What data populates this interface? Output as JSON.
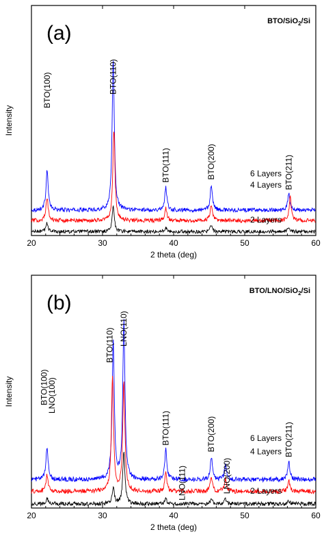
{
  "chart_data": [
    {
      "type": "line",
      "panel_label": "(a)",
      "sample": "BTO/SiO",
      "sample_sub": "2",
      "sample_tail": "/Si",
      "xlabel": "2 theta (deg)",
      "ylabel": "Intensity",
      "xlim": [
        20,
        60
      ],
      "xticks": [
        "20",
        "30",
        "40",
        "50",
        "60"
      ],
      "grid": false,
      "peak_labels": [
        {
          "text": "BTO(100)",
          "x": 22.2
        },
        {
          "text": "BTO(110)",
          "x": 31.5
        },
        {
          "text": "BTO(111)",
          "x": 38.9
        },
        {
          "text": "BTO(200)",
          "x": 45.3
        },
        {
          "text": "BTO(211)",
          "x": 56.2
        }
      ],
      "series": [
        {
          "name": "6 Layers",
          "color": "#0000ff",
          "baseline": 0.78,
          "noise": 0.07,
          "peaks": [
            [
              22.2,
              1.4
            ],
            [
              31.5,
              5.2
            ],
            [
              38.9,
              0.8
            ],
            [
              45.3,
              0.9
            ],
            [
              56.2,
              0.55
            ]
          ]
        },
        {
          "name": "4 Layers",
          "color": "#ff0000",
          "baseline": 0.42,
          "noise": 0.07,
          "peaks": [
            [
              22.2,
              0.8
            ],
            [
              31.6,
              3.1
            ],
            [
              38.9,
              0.45
            ],
            [
              45.3,
              0.55
            ],
            [
              56.4,
              0.8
            ]
          ]
        },
        {
          "name": "2 Layers",
          "color": "#000000",
          "baseline": 0.04,
          "noise": 0.06,
          "peaks": [
            [
              22.2,
              0.3
            ],
            [
              31.5,
              0.9
            ],
            [
              38.9,
              0.15
            ],
            [
              45.3,
              0.2
            ],
            [
              56.2,
              0.15
            ]
          ]
        }
      ]
    },
    {
      "type": "line",
      "panel_label": "(b)",
      "sample": "BTO/LNO/SiO",
      "sample_sub": "2",
      "sample_tail": "/Si",
      "xlabel": "2 theta (deg)",
      "ylabel": "Intensity",
      "xlim": [
        20,
        60
      ],
      "xticks": [
        "20",
        "30",
        "40",
        "50",
        "60"
      ],
      "grid": false,
      "peak_labels": [
        {
          "text": "BTO(100)",
          "x": 21.8
        },
        {
          "text": "LNO(100)",
          "x": 22.9
        },
        {
          "text": "BTO(110)",
          "x": 31.0
        },
        {
          "text": "LNO(110)",
          "x": 33.0
        },
        {
          "text": "BTO(111)",
          "x": 38.9
        },
        {
          "text": "LNO(111)",
          "x": 41.2
        },
        {
          "text": "BTO(200)",
          "x": 45.3
        },
        {
          "text": "LNO(200)",
          "x": 47.5
        },
        {
          "text": "BTO(211)",
          "x": 56.2
        }
      ],
      "series": [
        {
          "name": "6 Layers",
          "color": "#0000ff",
          "baseline": 0.78,
          "noise": 0.07,
          "peaks": [
            [
              22.2,
              1.0
            ],
            [
              31.5,
              4.2
            ],
            [
              33.0,
              4.8
            ],
            [
              38.9,
              0.9
            ],
            [
              45.3,
              0.7
            ],
            [
              47.3,
              0.45
            ],
            [
              56.2,
              0.55
            ]
          ]
        },
        {
          "name": "4 Layers",
          "color": "#ff0000",
          "baseline": 0.42,
          "noise": 0.07,
          "peaks": [
            [
              22.2,
              0.5
            ],
            [
              31.4,
              3.5
            ],
            [
              33.0,
              3.3
            ],
            [
              38.9,
              0.55
            ],
            [
              45.3,
              0.45
            ],
            [
              47.3,
              0.4
            ],
            [
              56.2,
              0.3
            ]
          ]
        },
        {
          "name": "2 Layers",
          "color": "#000000",
          "baseline": 0.04,
          "noise": 0.06,
          "peaks": [
            [
              22.2,
              0.2
            ],
            [
              31.5,
              0.5
            ],
            [
              33.0,
              1.6
            ],
            [
              38.9,
              0.15
            ],
            [
              45.3,
              0.15
            ],
            [
              47.3,
              0.15
            ],
            [
              56.2,
              0.1
            ]
          ]
        }
      ]
    }
  ]
}
